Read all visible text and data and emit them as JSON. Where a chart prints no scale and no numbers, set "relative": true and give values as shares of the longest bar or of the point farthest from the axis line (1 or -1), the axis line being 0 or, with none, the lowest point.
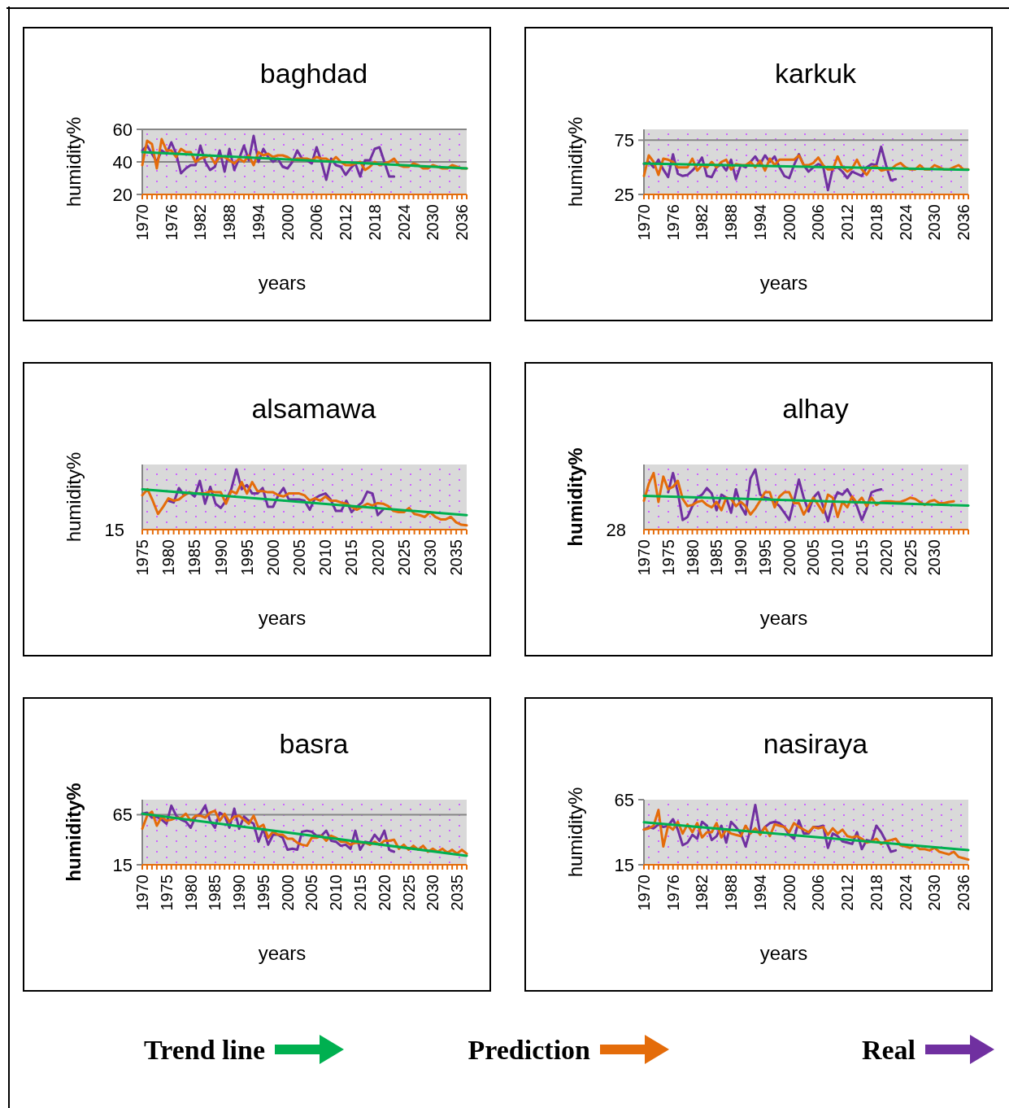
{
  "chart_data": [
    {
      "type": "line",
      "title": "baghdad",
      "xlabel": "years",
      "ylabel": "humidity%",
      "xlim": [
        1970,
        2037
      ],
      "ylim": [
        20,
        60
      ],
      "yticks": [
        20,
        40,
        60
      ],
      "xticks": [
        1970,
        1976,
        1982,
        1988,
        1994,
        2000,
        2006,
        2012,
        2018,
        2024,
        2030,
        2036
      ],
      "grid": "y",
      "legend": "bottom",
      "series": [
        {
          "name": "Trend line",
          "type": "line",
          "color": "#00b050",
          "x": [
            1970,
            2037
          ],
          "values": [
            46,
            36
          ]
        },
        {
          "name": "Prediction",
          "type": "line",
          "color": "#e46c0a",
          "x": [
            1970,
            1971,
            1972,
            1973,
            1974,
            1975,
            1976,
            1977,
            1978,
            1979,
            1980,
            1981,
            1982,
            1983,
            1984,
            1985,
            1986,
            1987,
            1988,
            1989,
            1990,
            1991,
            1992,
            1993,
            1994,
            1995,
            1996,
            1997,
            1998,
            1999,
            2000,
            2001,
            2002,
            2003,
            2004,
            2005,
            2006,
            2007,
            2008,
            2009,
            2010,
            2011,
            2012,
            2013,
            2014,
            2015,
            2016,
            2017,
            2018,
            2019,
            2020,
            2021,
            2022,
            2023,
            2024,
            2025,
            2026,
            2027,
            2028,
            2029,
            2030,
            2031,
            2032,
            2033,
            2034,
            2035,
            2036,
            2037
          ],
          "values": [
            38,
            53,
            51,
            36,
            54,
            47,
            47,
            43,
            48,
            46,
            46,
            40,
            42,
            43,
            44,
            39,
            43,
            43,
            41,
            39,
            42,
            40,
            44,
            38,
            46,
            44,
            45,
            43,
            44,
            44,
            43,
            41,
            42,
            42,
            42,
            41,
            43,
            42,
            42,
            40,
            43,
            40,
            38,
            38,
            39,
            40,
            35,
            37,
            40,
            38,
            39,
            40,
            42,
            38,
            37,
            37,
            39,
            38,
            36,
            36,
            38,
            37,
            36,
            36,
            38,
            37,
            36,
            36
          ]
        },
        {
          "name": "Real",
          "type": "line",
          "color": "#7030a0",
          "x": [
            1970,
            1971,
            1972,
            1973,
            1974,
            1975,
            1976,
            1977,
            1978,
            1979,
            1980,
            1981,
            1982,
            1983,
            1984,
            1985,
            1986,
            1987,
            1988,
            1989,
            1990,
            1991,
            1992,
            1993,
            1994,
            1995,
            1996,
            1997,
            1998,
            1999,
            2000,
            2001,
            2002,
            2003,
            2004,
            2005,
            2006,
            2007,
            2008,
            2009,
            2010,
            2011,
            2012,
            2013,
            2014,
            2015,
            2016,
            2017,
            2018,
            2019,
            2020,
            2021,
            2022
          ],
          "values": [
            47,
            50,
            45,
            40,
            47,
            45,
            52,
            45,
            33,
            36,
            38,
            38,
            50,
            40,
            35,
            37,
            47,
            34,
            48,
            35,
            42,
            50,
            41,
            56,
            40,
            48,
            43,
            40,
            42,
            37,
            36,
            40,
            47,
            42,
            41,
            39,
            49,
            40,
            29,
            42,
            38,
            37,
            32,
            36,
            39,
            31,
            41,
            41,
            48,
            49,
            40,
            31,
            31
          ]
        }
      ]
    },
    {
      "type": "line",
      "title": "karkuk",
      "xlabel": "years",
      "ylabel": "humidity%",
      "xlim": [
        1970,
        2037
      ],
      "ylim": [
        25,
        85
      ],
      "yticks": [
        25,
        75
      ],
      "xticks": [
        1970,
        1976,
        1982,
        1988,
        1994,
        2000,
        2006,
        2012,
        2018,
        2024,
        2030,
        2036
      ],
      "grid": "y",
      "series": [
        {
          "name": "Trend line",
          "type": "line",
          "color": "#00b050",
          "x": [
            1970,
            2037
          ],
          "values": [
            53.5,
            47.7
          ]
        },
        {
          "name": "Prediction",
          "type": "line",
          "color": "#e46c0a",
          "x": [
            1970,
            1971,
            1972,
            1973,
            1974,
            1975,
            1976,
            1977,
            1978,
            1979,
            1980,
            1981,
            1982,
            1983,
            1984,
            1985,
            1986,
            1987,
            1988,
            1989,
            1990,
            1991,
            1992,
            1993,
            1994,
            1995,
            1996,
            1997,
            1998,
            1999,
            2000,
            2001,
            2002,
            2003,
            2004,
            2005,
            2006,
            2007,
            2008,
            2009,
            2010,
            2011,
            2012,
            2013,
            2014,
            2015,
            2016,
            2017,
            2018,
            2019,
            2020,
            2021,
            2022,
            2023,
            2024,
            2025,
            2026,
            2027,
            2028,
            2029,
            2030,
            2031,
            2032,
            2033,
            2034,
            2035,
            2036,
            2037
          ],
          "values": [
            42,
            61,
            55,
            43,
            58,
            57,
            55,
            50,
            50,
            50,
            58,
            47,
            52,
            50,
            55,
            50,
            55,
            57,
            48,
            53,
            52,
            52,
            55,
            50,
            56,
            47,
            58,
            52,
            57,
            57,
            57,
            57,
            61,
            52,
            52,
            54,
            59,
            52,
            48,
            48,
            60,
            50,
            46,
            49,
            57,
            48,
            43,
            50,
            51,
            47,
            48,
            48,
            52,
            54,
            50,
            48,
            48,
            52,
            48,
            48,
            52,
            50,
            48,
            48,
            50,
            52,
            48,
            48
          ]
        },
        {
          "name": "Real",
          "type": "line",
          "color": "#7030a0",
          "x": [
            1970,
            1971,
            1972,
            1973,
            1974,
            1975,
            1976,
            1977,
            1978,
            1979,
            1980,
            1981,
            1982,
            1983,
            1984,
            1985,
            1986,
            1987,
            1988,
            1989,
            1990,
            1991,
            1992,
            1993,
            1994,
            1995,
            1996,
            1997,
            1998,
            1999,
            2000,
            2001,
            2002,
            2003,
            2004,
            2005,
            2006,
            2007,
            2008,
            2009,
            2010,
            2011,
            2012,
            2013,
            2014,
            2015,
            2016,
            2017,
            2018,
            2019,
            2020,
            2021,
            2022
          ],
          "values": [
            53,
            55,
            50,
            57,
            48,
            41,
            62,
            44,
            42,
            43,
            47,
            52,
            59,
            42,
            41,
            50,
            53,
            47,
            57,
            39,
            52,
            50,
            55,
            60,
            53,
            61,
            55,
            60,
            50,
            42,
            40,
            52,
            62,
            52,
            46,
            50,
            53,
            51,
            29,
            49,
            50,
            46,
            40,
            46,
            44,
            42,
            50,
            53,
            52,
            69,
            52,
            38,
            39
          ]
        }
      ]
    },
    {
      "type": "line",
      "title": "alsamawa",
      "xlabel": "years",
      "ylabel": "humidity%",
      "relative": true,
      "xlim": [
        1975,
        2037
      ],
      "xticks": [
        1975,
        1980,
        1985,
        1990,
        1995,
        2000,
        2005,
        2010,
        2015,
        2020,
        2025,
        2030,
        2035
      ],
      "annotations": [
        "15"
      ],
      "series": [
        {
          "name": "Trend line",
          "type": "line",
          "color": "#00b050",
          "x": [
            1975,
            2037
          ],
          "values": [
            0.67,
            0.24
          ]
        },
        {
          "name": "Prediction",
          "type": "line",
          "color": "#e46c0a",
          "x": [
            1975,
            1976,
            1977,
            1978,
            1979,
            1980,
            1981,
            1982,
            1983,
            1984,
            1985,
            1986,
            1987,
            1988,
            1989,
            1990,
            1991,
            1992,
            1993,
            1994,
            1995,
            1996,
            1997,
            1998,
            1999,
            2000,
            2001,
            2002,
            2003,
            2004,
            2005,
            2006,
            2007,
            2008,
            2009,
            2010,
            2011,
            2012,
            2013,
            2014,
            2015,
            2016,
            2017,
            2018,
            2019,
            2020,
            2021,
            2022,
            2023,
            2024,
            2025,
            2026,
            2027,
            2028,
            2029,
            2030,
            2031,
            2032,
            2033,
            2034,
            2035,
            2036,
            2037
          ],
          "values": [
            0.57,
            0.67,
            0.48,
            0.26,
            0.38,
            0.52,
            0.48,
            0.5,
            0.57,
            0.62,
            0.6,
            0.6,
            0.6,
            0.64,
            0.62,
            0.62,
            0.43,
            0.64,
            0.6,
            0.79,
            0.6,
            0.79,
            0.64,
            0.64,
            0.62,
            0.62,
            0.57,
            0.55,
            0.6,
            0.6,
            0.6,
            0.57,
            0.48,
            0.52,
            0.48,
            0.55,
            0.48,
            0.48,
            0.45,
            0.43,
            0.38,
            0.33,
            0.38,
            0.43,
            0.4,
            0.44,
            0.43,
            0.39,
            0.31,
            0.29,
            0.29,
            0.36,
            0.26,
            0.24,
            0.21,
            0.29,
            0.21,
            0.17,
            0.17,
            0.21,
            0.12,
            0.08,
            0.07
          ]
        },
        {
          "name": "Real",
          "type": "line",
          "color": "#7030a0",
          "x": [
            1980,
            1981,
            1982,
            1983,
            1984,
            1985,
            1986,
            1987,
            1988,
            1989,
            1990,
            1991,
            1992,
            1993,
            1994,
            1995,
            1996,
            1997,
            1998,
            1999,
            2000,
            2001,
            2002,
            2003,
            2004,
            2005,
            2006,
            2007,
            2008,
            2009,
            2010,
            2011,
            2012,
            2013,
            2014,
            2015,
            2016,
            2017,
            2018,
            2019,
            2020,
            2021
          ],
          "values": [
            0.48,
            0.45,
            0.69,
            0.57,
            0.62,
            0.55,
            0.81,
            0.43,
            0.71,
            0.43,
            0.36,
            0.48,
            0.67,
            1,
            0.67,
            0.74,
            0.6,
            0.6,
            0.69,
            0.38,
            0.38,
            0.57,
            0.69,
            0.5,
            0.5,
            0.5,
            0.48,
            0.33,
            0.52,
            0.57,
            0.6,
            0.5,
            0.31,
            0.31,
            0.48,
            0.29,
            0.38,
            0.45,
            0.63,
            0.6,
            0.24,
            0.33
          ]
        }
      ]
    },
    {
      "type": "line",
      "title": "alhay",
      "xlabel": "years",
      "ylabel": "humidity%",
      "relative": true,
      "xlim": [
        1970,
        2037
      ],
      "xticks": [
        1970,
        1975,
        1980,
        1985,
        1990,
        1995,
        2000,
        2005,
        2010,
        2015,
        2020,
        2025,
        2030
      ],
      "annotations": [
        "28"
      ],
      "series": [
        {
          "name": "Trend line",
          "type": "line",
          "color": "#00b050",
          "x": [
            1970,
            2037
          ],
          "values": [
            0.56,
            0.4
          ]
        },
        {
          "name": "Prediction",
          "type": "line",
          "color": "#e46c0a",
          "x": [
            1970,
            1971,
            1972,
            1973,
            1974,
            1975,
            1976,
            1977,
            1978,
            1979,
            1980,
            1981,
            1982,
            1983,
            1984,
            1985,
            1986,
            1987,
            1988,
            1989,
            1990,
            1991,
            1992,
            1993,
            1994,
            1995,
            1996,
            1997,
            1998,
            1999,
            2000,
            2001,
            2002,
            2003,
            2004,
            2005,
            2006,
            2007,
            2008,
            2009,
            2010,
            2011,
            2012,
            2013,
            2014,
            2015,
            2016,
            2017,
            2018,
            2019,
            2020,
            2021,
            2022,
            2023,
            2024,
            2025,
            2026,
            2027,
            2028,
            2029,
            2030,
            2031,
            2032,
            2033,
            2034
          ],
          "values": [
            0.48,
            0.76,
            0.94,
            0.46,
            0.88,
            0.67,
            0.71,
            0.81,
            0.51,
            0.39,
            0.41,
            0.46,
            0.48,
            0.41,
            0.37,
            0.46,
            0.32,
            0.53,
            0.51,
            0.39,
            0.46,
            0.39,
            0.25,
            0.35,
            0.48,
            0.62,
            0.62,
            0.37,
            0.55,
            0.62,
            0.62,
            0.44,
            0.44,
            0.25,
            0.39,
            0.53,
            0.41,
            0.28,
            0.58,
            0.53,
            0.21,
            0.46,
            0.37,
            0.55,
            0.44,
            0.53,
            0.39,
            0.53,
            0.41,
            0.46,
            0.47,
            0.47,
            0.46,
            0.46,
            0.49,
            0.53,
            0.51,
            0.46,
            0.41,
            0.47,
            0.49,
            0.44,
            0.44,
            0.46,
            0.47
          ]
        },
        {
          "name": "Real",
          "type": "line",
          "color": "#7030a0",
          "x": [
            1975,
            1976,
            1977,
            1978,
            1979,
            1980,
            1981,
            1982,
            1983,
            1984,
            1985,
            1986,
            1987,
            1988,
            1989,
            1990,
            1991,
            1992,
            1993,
            1994,
            1995,
            1996,
            1997,
            1998,
            1999,
            2000,
            2001,
            2002,
            2003,
            2004,
            2005,
            2006,
            2007,
            2008,
            2009,
            2010,
            2011,
            2012,
            2013,
            2014,
            2015,
            2016,
            2017,
            2018,
            2019
          ],
          "values": [
            0.62,
            0.94,
            0.62,
            0.16,
            0.21,
            0.39,
            0.53,
            0.58,
            0.69,
            0.6,
            0.32,
            0.58,
            0.53,
            0.28,
            0.67,
            0.39,
            0.25,
            0.85,
            1,
            0.58,
            0.53,
            0.51,
            0.46,
            0.39,
            0.28,
            0.16,
            0.48,
            0.83,
            0.53,
            0.3,
            0.53,
            0.62,
            0.39,
            0.14,
            0.44,
            0.62,
            0.58,
            0.67,
            0.53,
            0.39,
            0.16,
            0.35,
            0.62,
            0.65,
            0.67
          ]
        }
      ]
    },
    {
      "type": "line",
      "title": "basra",
      "xlabel": "years",
      "ylabel": "humidity%",
      "xlim": [
        1970,
        2037
      ],
      "ylim": [
        15,
        80
      ],
      "yticks": [
        15,
        65
      ],
      "xticks": [
        1970,
        1975,
        1980,
        1985,
        1990,
        1995,
        2000,
        2005,
        2010,
        2015,
        2020,
        2025,
        2030,
        2035
      ],
      "grid": "y",
      "series": [
        {
          "name": "Trend line",
          "type": "line",
          "color": "#00b050",
          "x": [
            1970,
            2037
          ],
          "values": [
            66,
            24
          ]
        },
        {
          "name": "Prediction",
          "type": "line",
          "color": "#e46c0a",
          "x": [
            1970,
            1971,
            1972,
            1973,
            1974,
            1975,
            1976,
            1977,
            1978,
            1979,
            1980,
            1981,
            1982,
            1983,
            1984,
            1985,
            1986,
            1987,
            1988,
            1989,
            1990,
            1991,
            1992,
            1993,
            1994,
            1995,
            1996,
            1997,
            1998,
            1999,
            2000,
            2001,
            2002,
            2003,
            2004,
            2005,
            2006,
            2007,
            2008,
            2009,
            2010,
            2011,
            2012,
            2013,
            2014,
            2015,
            2016,
            2017,
            2018,
            2019,
            2020,
            2021,
            2022,
            2023,
            2024,
            2025,
            2026,
            2027,
            2028,
            2029,
            2030,
            2031,
            2032,
            2033,
            2034,
            2035,
            2036,
            2037
          ],
          "values": [
            51,
            64,
            68,
            54,
            63,
            59,
            60,
            62,
            62,
            66,
            59,
            64,
            64,
            62,
            67,
            69,
            59,
            66,
            58,
            63,
            64,
            60,
            56,
            64,
            52,
            55,
            42,
            48,
            45,
            45,
            41,
            41,
            37,
            35,
            34,
            42,
            42,
            44,
            39,
            44,
            42,
            38,
            38,
            35,
            37,
            37,
            37,
            35,
            38,
            35,
            39,
            39,
            40,
            31,
            35,
            30,
            34,
            30,
            34,
            28,
            31,
            28,
            31,
            27,
            30,
            26,
            30,
            26
          ]
        },
        {
          "name": "Real",
          "type": "line",
          "color": "#7030a0",
          "x": [
            1970,
            1971,
            1972,
            1973,
            1974,
            1975,
            1976,
            1977,
            1978,
            1979,
            1980,
            1981,
            1982,
            1983,
            1984,
            1985,
            1986,
            1987,
            1988,
            1989,
            1990,
            1991,
            1992,
            1993,
            1994,
            1995,
            1996,
            1997,
            1998,
            1999,
            2000,
            2001,
            2002,
            2003,
            2004,
            2005,
            2006,
            2007,
            2008,
            2009,
            2010,
            2011,
            2012,
            2013,
            2014,
            2015,
            2016,
            2017,
            2018,
            2019,
            2020,
            2021,
            2022
          ],
          "values": [
            66,
            67,
            62,
            63,
            60,
            56,
            74,
            64,
            60,
            58,
            52,
            63,
            66,
            74,
            59,
            52,
            67,
            64,
            52,
            71,
            51,
            63,
            59,
            56,
            38,
            51,
            35,
            45,
            45,
            42,
            30,
            31,
            30,
            48,
            49,
            48,
            44,
            44,
            49,
            39,
            38,
            34,
            35,
            31,
            49,
            30,
            38,
            37,
            45,
            39,
            49,
            30,
            28
          ]
        }
      ]
    },
    {
      "type": "line",
      "title": "nasiraya",
      "xlabel": "years",
      "ylabel": "humidity%",
      "xlim": [
        1970,
        2037
      ],
      "ylim": [
        15,
        65
      ],
      "yticks": [
        15,
        65
      ],
      "xticks": [
        1970,
        1976,
        1982,
        1988,
        1994,
        2000,
        2006,
        2012,
        2018,
        2024,
        2030,
        2036
      ],
      "series": [
        {
          "name": "Trend line",
          "type": "line",
          "color": "#00b050",
          "x": [
            1970,
            2037
          ],
          "values": [
            47.6,
            26.3
          ]
        },
        {
          "name": "Prediction",
          "type": "line",
          "color": "#e46c0a",
          "x": [
            1970,
            1971,
            1972,
            1973,
            1974,
            1975,
            1976,
            1977,
            1978,
            1979,
            1980,
            1981,
            1982,
            1983,
            1984,
            1985,
            1986,
            1987,
            1988,
            1989,
            1990,
            1991,
            1992,
            1993,
            1994,
            1995,
            1996,
            1997,
            1998,
            1999,
            2000,
            2001,
            2002,
            2003,
            2004,
            2005,
            2006,
            2007,
            2008,
            2009,
            2010,
            2011,
            2012,
            2013,
            2014,
            2015,
            2016,
            2017,
            2018,
            2019,
            2020,
            2021,
            2022,
            2023,
            2024,
            2025,
            2026,
            2027,
            2028,
            2029,
            2030,
            2031,
            2032,
            2033,
            2034,
            2035,
            2036,
            2037
          ],
          "values": [
            42,
            43,
            45,
            57,
            29,
            45,
            42,
            48,
            39,
            46,
            40,
            47,
            36,
            40,
            40,
            47,
            36,
            42,
            39,
            38,
            37,
            45,
            39,
            43,
            38,
            44,
            37,
            46,
            45,
            44,
            40,
            47,
            44,
            42,
            40,
            44,
            43,
            44,
            38,
            43,
            39,
            42,
            37,
            36,
            37,
            35,
            32,
            33,
            35,
            31,
            33,
            34,
            35,
            30,
            29,
            28,
            30,
            27,
            27,
            26,
            28,
            25,
            24,
            23,
            25,
            21,
            20,
            19
          ]
        },
        {
          "name": "Real",
          "type": "line",
          "color": "#7030a0",
          "x": [
            1970,
            1971,
            1972,
            1973,
            1974,
            1975,
            1976,
            1977,
            1978,
            1979,
            1980,
            1981,
            1982,
            1983,
            1984,
            1985,
            1986,
            1987,
            1988,
            1989,
            1990,
            1991,
            1992,
            1993,
            1994,
            1995,
            1996,
            1997,
            1998,
            1999,
            2000,
            2001,
            2002,
            2003,
            2004,
            2005,
            2006,
            2007,
            2008,
            2009,
            2010,
            2011,
            2012,
            2013,
            2014,
            2015,
            2016,
            2017,
            2018,
            2019,
            2020,
            2021,
            2022
          ],
          "values": [
            42,
            44,
            43,
            46,
            44,
            45,
            50,
            42,
            30,
            32,
            38,
            35,
            48,
            45,
            34,
            37,
            45,
            32,
            48,
            44,
            39,
            29,
            42,
            61,
            39,
            44,
            47,
            48,
            47,
            44,
            38,
            35,
            49,
            39,
            39,
            44,
            44,
            45,
            28,
            39,
            37,
            33,
            32,
            31,
            40,
            27,
            34,
            33,
            45,
            40,
            33,
            25,
            26
          ]
        }
      ]
    }
  ]
}
